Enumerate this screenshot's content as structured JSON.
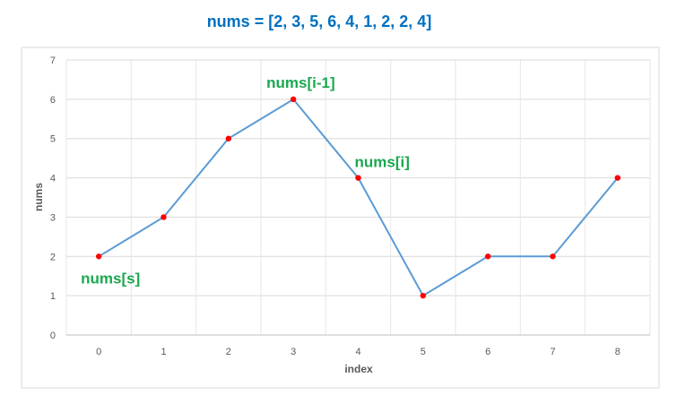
{
  "chart_data": {
    "type": "line",
    "title": "nums = [2, 3, 5, 6, 4, 1, 2, 2, 4]",
    "xlabel": "index",
    "ylabel": "nums",
    "categories": [
      "0",
      "1",
      "2",
      "3",
      "4",
      "5",
      "6",
      "7",
      "8"
    ],
    "series": [
      {
        "values": [
          2,
          3,
          5,
          6,
          4,
          1,
          2,
          2,
          4
        ]
      }
    ],
    "ylim": [
      0,
      7
    ],
    "yticks": [
      "0",
      "1",
      "2",
      "3",
      "4",
      "5",
      "6",
      "7"
    ],
    "grid": true,
    "line_color": "#5b9bd5",
    "marker_color": "#ff0000",
    "annotations": [
      {
        "text": "nums[s]",
        "index": 0
      },
      {
        "text": "nums[i-1]",
        "index": 3
      },
      {
        "text": "nums[i]",
        "index": 4
      }
    ],
    "annotation_color": "#1aa84f",
    "title_color": "#0070c0"
  }
}
